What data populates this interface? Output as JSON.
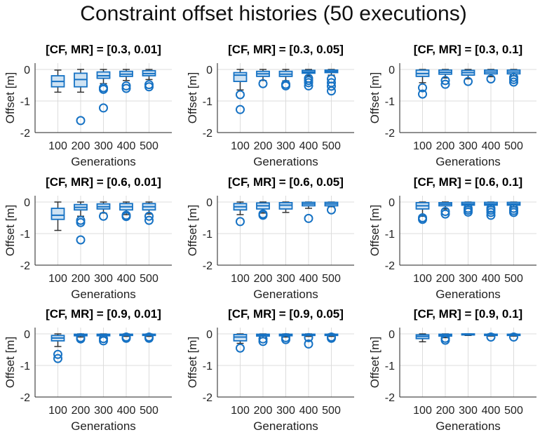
{
  "figure_title": "Constraint offset histories (50 executions)",
  "colors": {
    "box_edge": "#1672c4",
    "box_fill": "#cfe3f3",
    "median": "#1672c4",
    "whisker": "#333333",
    "outlier": "#1672c4",
    "grid": "#dcdcdc",
    "axis": "#222222",
    "text": "#222222"
  },
  "chart_data": [
    {
      "type": "box",
      "title": "[CF, MR] = [0.3, 0.01]",
      "xlabel": "Generations",
      "ylabel": "Offset [m]",
      "categories": [
        "100",
        "200",
        "300",
        "400",
        "500"
      ],
      "ylim": [
        -2,
        0.2
      ],
      "yticks": [
        -2,
        -1,
        0
      ],
      "grid": true,
      "boxes": [
        {
          "q1": -0.55,
          "median": -0.38,
          "q3": -0.2,
          "wlo": -0.72,
          "whi": -0.02,
          "outliers": []
        },
        {
          "q1": -0.55,
          "median": -0.32,
          "q3": -0.12,
          "wlo": -0.72,
          "whi": 0,
          "outliers": [
            -1.62
          ]
        },
        {
          "q1": -0.28,
          "median": -0.2,
          "q3": -0.08,
          "wlo": -0.45,
          "whi": 0,
          "outliers": [
            -0.58,
            -0.63,
            -1.22
          ]
        },
        {
          "q1": -0.22,
          "median": -0.15,
          "q3": -0.06,
          "wlo": -0.35,
          "whi": 0,
          "outliers": [
            -0.52,
            -0.6
          ]
        },
        {
          "q1": -0.2,
          "median": -0.13,
          "q3": -0.04,
          "wlo": -0.32,
          "whi": 0,
          "outliers": [
            -0.48,
            -0.55
          ]
        }
      ]
    },
    {
      "type": "box",
      "title": "[CF, MR] = [0.3, 0.05]",
      "xlabel": "Generations",
      "ylabel": "Offset [m]",
      "categories": [
        "100",
        "200",
        "300",
        "400",
        "500"
      ],
      "ylim": [
        -2,
        0.2
      ],
      "yticks": [
        -2,
        -1,
        0
      ],
      "grid": true,
      "boxes": [
        {
          "q1": -0.38,
          "median": -0.18,
          "q3": -0.1,
          "wlo": -0.65,
          "whi": 0,
          "outliers": [
            -0.8,
            -1.27
          ]
        },
        {
          "q1": -0.22,
          "median": -0.14,
          "q3": -0.06,
          "wlo": -0.35,
          "whi": 0,
          "outliers": [
            -0.45
          ]
        },
        {
          "q1": -0.22,
          "median": -0.15,
          "q3": -0.06,
          "wlo": -0.36,
          "whi": 0,
          "outliers": [
            -0.47,
            -0.52
          ]
        },
        {
          "q1": -0.12,
          "median": -0.08,
          "q3": -0.03,
          "wlo": -0.2,
          "whi": 0,
          "outliers": [
            -0.28,
            -0.35,
            -0.42,
            -0.52
          ]
        },
        {
          "q1": -0.1,
          "median": -0.06,
          "q3": -0.02,
          "wlo": -0.18,
          "whi": 0,
          "outliers": [
            -0.3,
            -0.42,
            -0.53,
            -0.68
          ]
        }
      ]
    },
    {
      "type": "box",
      "title": "[CF, MR] = [0.3, 0.1]",
      "xlabel": "Generations",
      "ylabel": "Offset [m]",
      "categories": [
        "100",
        "200",
        "300",
        "400",
        "500"
      ],
      "ylim": [
        -2,
        0.2
      ],
      "yticks": [
        -2,
        -1,
        0
      ],
      "grid": true,
      "boxes": [
        {
          "q1": -0.22,
          "median": -0.13,
          "q3": -0.02,
          "wlo": -0.42,
          "whi": 0,
          "outliers": [
            -0.58,
            -0.78
          ]
        },
        {
          "q1": -0.15,
          "median": -0.09,
          "q3": -0.02,
          "wlo": -0.27,
          "whi": 0,
          "outliers": [
            -0.35,
            -0.47
          ]
        },
        {
          "q1": -0.18,
          "median": -0.1,
          "q3": -0.03,
          "wlo": -0.3,
          "whi": 0,
          "outliers": [
            -0.38
          ]
        },
        {
          "q1": -0.14,
          "median": -0.08,
          "q3": -0.02,
          "wlo": -0.23,
          "whi": 0,
          "outliers": [
            -0.3
          ]
        },
        {
          "q1": -0.14,
          "median": -0.08,
          "q3": -0.02,
          "wlo": -0.2,
          "whi": 0,
          "outliers": [
            -0.25,
            -0.32,
            -0.4
          ]
        }
      ]
    },
    {
      "type": "box",
      "title": "[CF, MR] = [0.6, 0.01]",
      "xlabel": "Generations",
      "ylabel": "Offset [m]",
      "categories": [
        "100",
        "200",
        "300",
        "400",
        "500"
      ],
      "ylim": [
        -2,
        0.2
      ],
      "yticks": [
        -2,
        -1,
        0
      ],
      "grid": true,
      "boxes": [
        {
          "q1": -0.55,
          "median": -0.42,
          "q3": -0.2,
          "wlo": -0.9,
          "whi": 0,
          "outliers": []
        },
        {
          "q1": -0.25,
          "median": -0.17,
          "q3": -0.08,
          "wlo": -0.45,
          "whi": 0,
          "outliers": [
            -0.58,
            -0.65,
            -1.2
          ]
        },
        {
          "q1": -0.22,
          "median": -0.15,
          "q3": -0.06,
          "wlo": -0.35,
          "whi": 0,
          "outliers": [
            -0.45
          ]
        },
        {
          "q1": -0.25,
          "median": -0.15,
          "q3": -0.05,
          "wlo": -0.4,
          "whi": 0,
          "outliers": [
            -0.42,
            -0.46
          ]
        },
        {
          "q1": -0.25,
          "median": -0.15,
          "q3": -0.05,
          "wlo": -0.38,
          "whi": 0,
          "outliers": [
            -0.45,
            -0.58
          ]
        }
      ]
    },
    {
      "type": "box",
      "title": "[CF, MR] = [0.6, 0.05]",
      "xlabel": "Generations",
      "ylabel": "Offset [m]",
      "categories": [
        "100",
        "200",
        "300",
        "400",
        "500"
      ],
      "ylim": [
        -2,
        0.2
      ],
      "yticks": [
        -2,
        -1,
        0
      ],
      "grid": true,
      "boxes": [
        {
          "q1": -0.25,
          "median": -0.15,
          "q3": -0.05,
          "wlo": -0.4,
          "whi": 0,
          "outliers": [
            -0.62
          ]
        },
        {
          "q1": -0.22,
          "median": -0.12,
          "q3": -0.03,
          "wlo": -0.35,
          "whi": 0,
          "outliers": [
            -0.38,
            -0.42
          ]
        },
        {
          "q1": -0.22,
          "median": -0.1,
          "q3": -0.02,
          "wlo": -0.33,
          "whi": 0,
          "outliers": []
        },
        {
          "q1": -0.12,
          "median": -0.06,
          "q3": -0.01,
          "wlo": -0.2,
          "whi": 0,
          "outliers": [
            -0.52
          ]
        },
        {
          "q1": -0.12,
          "median": -0.06,
          "q3": -0.01,
          "wlo": -0.15,
          "whi": 0,
          "outliers": [
            -0.25
          ]
        }
      ]
    },
    {
      "type": "box",
      "title": "[CF, MR] = [0.6, 0.1]",
      "xlabel": "Generations",
      "ylabel": "Offset [m]",
      "categories": [
        "100",
        "200",
        "300",
        "400",
        "500"
      ],
      "ylim": [
        -2,
        0.2
      ],
      "yticks": [
        -2,
        -1,
        0
      ],
      "grid": true,
      "boxes": [
        {
          "q1": -0.22,
          "median": -0.12,
          "q3": -0.02,
          "wlo": -0.45,
          "whi": 0,
          "outliers": [
            -0.5,
            -0.55
          ]
        },
        {
          "q1": -0.12,
          "median": -0.07,
          "q3": -0.02,
          "wlo": -0.22,
          "whi": 0,
          "outliers": [
            -0.3,
            -0.38
          ]
        },
        {
          "q1": -0.1,
          "median": -0.06,
          "q3": -0.01,
          "wlo": -0.15,
          "whi": 0,
          "outliers": [
            -0.2,
            -0.26,
            -0.32
          ]
        },
        {
          "q1": -0.1,
          "median": -0.06,
          "q3": -0.01,
          "wlo": -0.15,
          "whi": 0,
          "outliers": [
            -0.2,
            -0.26,
            -0.33,
            -0.42
          ]
        },
        {
          "q1": -0.1,
          "median": -0.06,
          "q3": -0.01,
          "wlo": -0.15,
          "whi": 0,
          "outliers": [
            -0.2,
            -0.27,
            -0.33
          ]
        }
      ]
    },
    {
      "type": "box",
      "title": "[CF, MR] = [0.9, 0.01]",
      "xlabel": "Generations",
      "ylabel": "Offset [m]",
      "categories": [
        "100",
        "200",
        "300",
        "400",
        "500"
      ],
      "ylim": [
        -2,
        0.2
      ],
      "yticks": [
        -2,
        -1,
        0
      ],
      "grid": true,
      "boxes": [
        {
          "q1": -0.22,
          "median": -0.13,
          "q3": -0.05,
          "wlo": -0.4,
          "whi": 0,
          "outliers": [
            -0.65,
            -0.78
          ]
        },
        {
          "q1": -0.06,
          "median": -0.03,
          "q3": -0.01,
          "wlo": -0.1,
          "whi": 0,
          "outliers": [
            -0.12,
            -0.16
          ]
        },
        {
          "q1": -0.06,
          "median": -0.03,
          "q3": -0.01,
          "wlo": -0.1,
          "whi": 0,
          "outliers": [
            -0.15,
            -0.22
          ]
        },
        {
          "q1": -0.05,
          "median": -0.02,
          "q3": -0.01,
          "wlo": -0.08,
          "whi": 0,
          "outliers": [
            -0.1,
            -0.14
          ]
        },
        {
          "q1": -0.05,
          "median": -0.02,
          "q3": -0.01,
          "wlo": -0.08,
          "whi": 0,
          "outliers": [
            -0.1,
            -0.14
          ]
        }
      ]
    },
    {
      "type": "box",
      "title": "[CF, MR] = [0.9, 0.05]",
      "xlabel": "Generations",
      "ylabel": "Offset [m]",
      "categories": [
        "100",
        "200",
        "300",
        "400",
        "500"
      ],
      "ylim": [
        -2,
        0.2
      ],
      "yticks": [
        -2,
        -1,
        0
      ],
      "grid": true,
      "boxes": [
        {
          "q1": -0.22,
          "median": -0.1,
          "q3": -0.02,
          "wlo": -0.3,
          "whi": 0,
          "outliers": [
            -0.45
          ]
        },
        {
          "q1": -0.07,
          "median": -0.03,
          "q3": -0.01,
          "wlo": -0.12,
          "whi": 0,
          "outliers": [
            -0.16,
            -0.24
          ]
        },
        {
          "q1": -0.06,
          "median": -0.03,
          "q3": -0.01,
          "wlo": -0.1,
          "whi": 0,
          "outliers": [
            -0.12,
            -0.18
          ]
        },
        {
          "q1": -0.05,
          "median": -0.02,
          "q3": -0.01,
          "wlo": -0.08,
          "whi": 0,
          "outliers": [
            -0.12,
            -0.32
          ]
        },
        {
          "q1": -0.05,
          "median": -0.02,
          "q3": -0.01,
          "wlo": -0.08,
          "whi": 0,
          "outliers": [
            -0.1,
            -0.14
          ]
        }
      ]
    },
    {
      "type": "box",
      "title": "[CF, MR] = [0.9, 0.1]",
      "xlabel": "Generations",
      "ylabel": "Offset [m]",
      "categories": [
        "100",
        "200",
        "300",
        "400",
        "500"
      ],
      "ylim": [
        -2,
        0.2
      ],
      "yticks": [
        -2,
        -1,
        0
      ],
      "grid": true,
      "boxes": [
        {
          "q1": -0.15,
          "median": -0.08,
          "q3": -0.03,
          "wlo": -0.25,
          "whi": 0,
          "outliers": []
        },
        {
          "q1": -0.07,
          "median": -0.03,
          "q3": -0.01,
          "wlo": -0.12,
          "whi": 0,
          "outliers": [
            -0.14,
            -0.2
          ]
        },
        {
          "q1": -0.03,
          "median": -0.01,
          "q3": 0,
          "wlo": -0.05,
          "whi": 0,
          "outliers": []
        },
        {
          "q1": -0.05,
          "median": -0.02,
          "q3": -0.01,
          "wlo": -0.07,
          "whi": 0,
          "outliers": [
            -0.1
          ]
        },
        {
          "q1": -0.05,
          "median": -0.02,
          "q3": -0.01,
          "wlo": -0.07,
          "whi": 0,
          "outliers": [
            -0.1
          ]
        }
      ]
    }
  ]
}
